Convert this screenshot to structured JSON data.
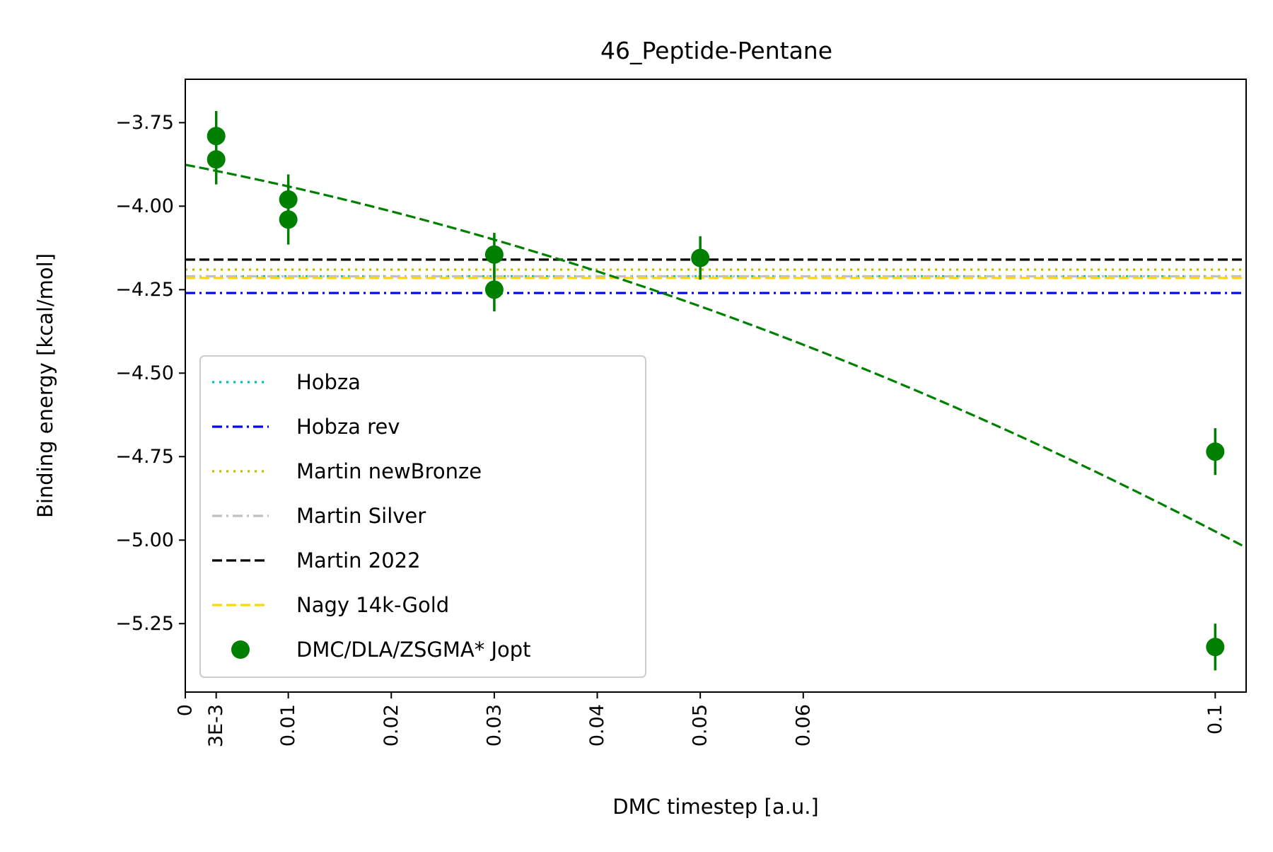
{
  "chart_data": {
    "type": "scatter",
    "title": "46_Peptide-Pentane",
    "xlabel": "DMC timestep [a.u.]",
    "ylabel": "Binding energy [kcal/mol]",
    "xlim": [
      0,
      0.103
    ],
    "ylim": [
      -5.455,
      -3.62
    ],
    "x_ticks": [
      {
        "value": 0,
        "label": "0"
      },
      {
        "value": 0.003,
        "label": "3E-3"
      },
      {
        "value": 0.01,
        "label": "0.01"
      },
      {
        "value": 0.02,
        "label": "0.02"
      },
      {
        "value": 0.03,
        "label": "0.03"
      },
      {
        "value": 0.04,
        "label": "0.04"
      },
      {
        "value": 0.05,
        "label": "0.05"
      },
      {
        "value": 0.06,
        "label": "0.06"
      },
      {
        "value": 0.1,
        "label": "0.1"
      }
    ],
    "y_ticks": [
      {
        "value": -3.75,
        "label": "−3.75"
      },
      {
        "value": -4.0,
        "label": "−4.00"
      },
      {
        "value": -4.25,
        "label": "−4.25"
      },
      {
        "value": -4.5,
        "label": "−4.50"
      },
      {
        "value": -4.75,
        "label": "−4.75"
      },
      {
        "value": -5.0,
        "label": "−5.00"
      },
      {
        "value": -5.25,
        "label": "−5.25"
      }
    ],
    "grid": false,
    "legend_position": "lower-left",
    "reference_lines": [
      {
        "name": "Hobza",
        "value": -4.21,
        "color": "#00bfbf",
        "dash": "dotted"
      },
      {
        "name": "Hobza rev",
        "value": -4.26,
        "color": "#0000ff",
        "dash": "dashdot"
      },
      {
        "name": "Martin newBronze",
        "value": -4.19,
        "color": "#bfbf00",
        "dash": "dotted"
      },
      {
        "name": "Martin Silver",
        "value": -4.21,
        "color": "#c0c0c0",
        "dash": "dashdot"
      },
      {
        "name": "Martin 2022",
        "value": -4.16,
        "color": "#000000",
        "dash": "dashed"
      },
      {
        "name": "Nagy 14k-Gold",
        "value": -4.215,
        "color": "#ffd700",
        "dash": "dashed"
      }
    ],
    "series": [
      {
        "name": "DMC/DLA/ZSGMA* Jopt",
        "color": "#008000",
        "points": [
          {
            "x": 0.003,
            "y": -3.79,
            "err": 0.075
          },
          {
            "x": 0.003,
            "y": -3.86,
            "err": 0.075
          },
          {
            "x": 0.01,
            "y": -3.98,
            "err": 0.075
          },
          {
            "x": 0.01,
            "y": -4.04,
            "err": 0.075
          },
          {
            "x": 0.03,
            "y": -4.145,
            "err": 0.065
          },
          {
            "x": 0.03,
            "y": -4.25,
            "err": 0.065
          },
          {
            "x": 0.05,
            "y": -4.155,
            "err": 0.065
          },
          {
            "x": 0.1,
            "y": -4.735,
            "err": 0.07
          },
          {
            "x": 0.1,
            "y": -5.32,
            "err": 0.07
          }
        ]
      }
    ],
    "fit_curve": {
      "color": "#008000",
      "dash": "dashed",
      "coefficients": {
        "a": -3.876,
        "b": -5.98,
        "c": -50.0
      }
    }
  }
}
